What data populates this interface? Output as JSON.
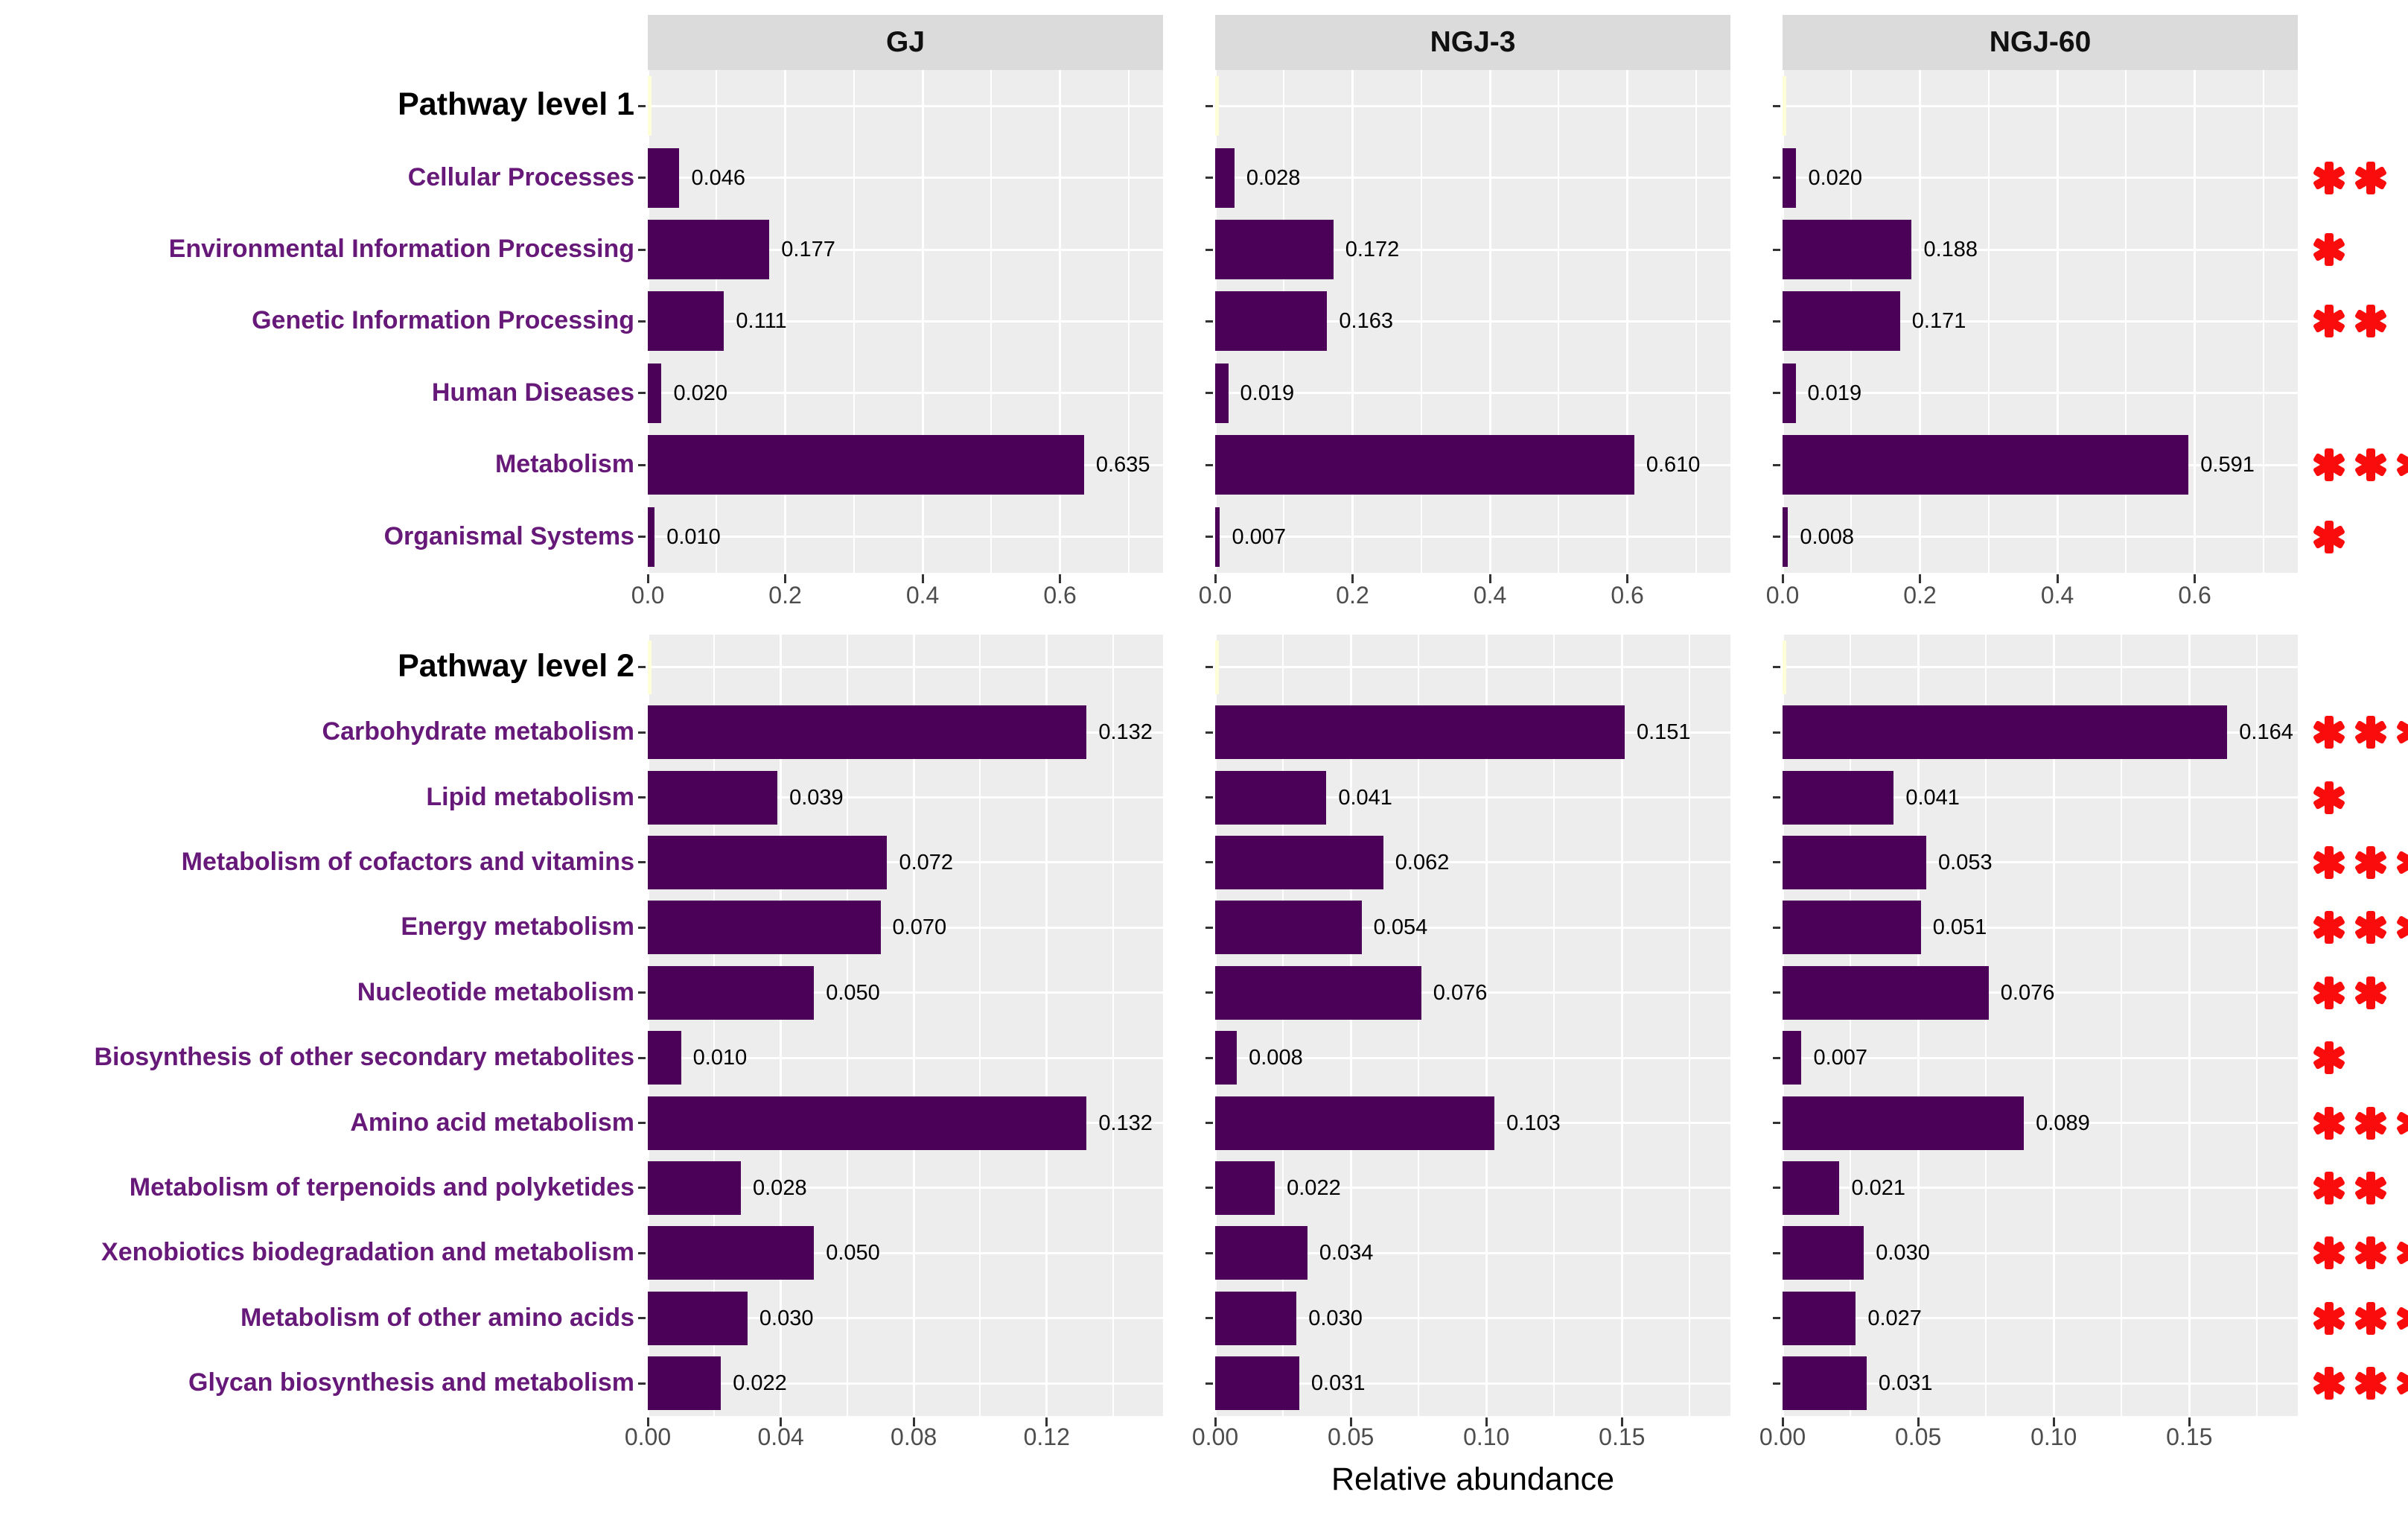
{
  "figure": {
    "xlabel": "Relative abundance",
    "columns": [
      "GJ",
      "NGJ-3",
      "NGJ-60"
    ],
    "colors": {
      "bar": "#4B0158",
      "dummy_bar": "#FEFED8",
      "row_label": "#671979",
      "significance": "#FB0C0C",
      "panel_background": "#EDEDED",
      "strip_background": "#DBDBDB",
      "tick_text": "#4D4D4D"
    }
  },
  "chart_data": [
    {
      "type": "bar",
      "orientation": "horizontal",
      "facet": "Pathway level 1",
      "columns": [
        "GJ",
        "NGJ-3",
        "NGJ-60"
      ],
      "legend": "none",
      "grid": "on",
      "axes": [
        {
          "xmax": 0.75,
          "major": [
            0,
            0.2,
            0.4,
            0.6
          ],
          "labels": [
            "0.0",
            "0.2",
            "0.4",
            "0.6"
          ],
          "minor": [
            0.1,
            0.3,
            0.5,
            0.7
          ]
        },
        {
          "xmax": 0.75,
          "major": [
            0,
            0.2,
            0.4,
            0.6
          ],
          "labels": [
            "0.0",
            "0.2",
            "0.4",
            "0.6"
          ],
          "minor": [
            0.1,
            0.3,
            0.5,
            0.7
          ]
        },
        {
          "xmax": 0.75,
          "major": [
            0,
            0.2,
            0.4,
            0.6
          ],
          "labels": [
            "0.0",
            "0.2",
            "0.4",
            "0.6"
          ],
          "minor": [
            0.1,
            0.3,
            0.5,
            0.7
          ]
        }
      ],
      "rows": [
        {
          "label": "Cellular Processes",
          "values": [
            0.046,
            0.028,
            0.02
          ],
          "display": [
            "0.046",
            "0.028",
            "0.020"
          ],
          "significance": "**"
        },
        {
          "label": "Environmental Information Processing",
          "values": [
            0.177,
            0.172,
            0.188
          ],
          "display": [
            "0.177",
            "0.172",
            "0.188"
          ],
          "significance": "*"
        },
        {
          "label": "Genetic Information Processing",
          "values": [
            0.111,
            0.163,
            0.171
          ],
          "display": [
            "0.111",
            "0.163",
            "0.171"
          ],
          "significance": "**"
        },
        {
          "label": "Human Diseases",
          "values": [
            0.02,
            0.019,
            0.019
          ],
          "display": [
            "0.020",
            "0.019",
            "0.019"
          ],
          "significance": ""
        },
        {
          "label": "Metabolism",
          "values": [
            0.635,
            0.61,
            0.591
          ],
          "display": [
            "0.635",
            "0.610",
            "0.591"
          ],
          "significance": "***"
        },
        {
          "label": "Organismal Systems",
          "values": [
            0.01,
            0.007,
            0.008
          ],
          "display": [
            "0.010",
            "0.007",
            "0.008"
          ],
          "significance": "*"
        }
      ]
    },
    {
      "type": "bar",
      "orientation": "horizontal",
      "facet": "Pathway level 2",
      "columns": [
        "GJ",
        "NGJ-3",
        "NGJ-60"
      ],
      "legend": "none",
      "grid": "on",
      "axes": [
        {
          "xmax": 0.155,
          "major": [
            0,
            0.04,
            0.08,
            0.12
          ],
          "labels": [
            "0.00",
            "0.04",
            "0.08",
            "0.12"
          ],
          "minor": [
            0.02,
            0.06,
            0.1,
            0.14
          ]
        },
        {
          "xmax": 0.19,
          "major": [
            0,
            0.05,
            0.1,
            0.15
          ],
          "labels": [
            "0.00",
            "0.05",
            "0.10",
            "0.15"
          ],
          "minor": [
            0.025,
            0.075,
            0.125,
            0.175
          ]
        },
        {
          "xmax": 0.19,
          "major": [
            0,
            0.05,
            0.1,
            0.15
          ],
          "labels": [
            "0.00",
            "0.05",
            "0.10",
            "0.15"
          ],
          "minor": [
            0.025,
            0.075,
            0.125,
            0.175
          ]
        }
      ],
      "rows": [
        {
          "label": "Carbohydrate metabolism",
          "values": [
            0.132,
            0.151,
            0.164
          ],
          "display": [
            "0.132",
            "0.151",
            "0.164"
          ],
          "significance": "***"
        },
        {
          "label": "Lipid metabolism",
          "values": [
            0.039,
            0.041,
            0.041
          ],
          "display": [
            "0.039",
            "0.041",
            "0.041"
          ],
          "significance": "*"
        },
        {
          "label": "Metabolism of cofactors and vitamins",
          "values": [
            0.072,
            0.062,
            0.053
          ],
          "display": [
            "0.072",
            "0.062",
            "0.053"
          ],
          "significance": "***"
        },
        {
          "label": "Energy metabolism",
          "values": [
            0.07,
            0.054,
            0.051
          ],
          "display": [
            "0.070",
            "0.054",
            "0.051"
          ],
          "significance": "***"
        },
        {
          "label": "Nucleotide metabolism",
          "values": [
            0.05,
            0.076,
            0.076
          ],
          "display": [
            "0.050",
            "0.076",
            "0.076"
          ],
          "significance": "**"
        },
        {
          "label": "Biosynthesis of other secondary metabolites",
          "values": [
            0.01,
            0.008,
            0.007
          ],
          "display": [
            "0.010",
            "0.008",
            "0.007"
          ],
          "significance": "*"
        },
        {
          "label": "Amino acid metabolism",
          "values": [
            0.132,
            0.103,
            0.089
          ],
          "display": [
            "0.132",
            "0.103",
            "0.089"
          ],
          "significance": "***"
        },
        {
          "label": "Metabolism of terpenoids and polyketides",
          "values": [
            0.028,
            0.022,
            0.021
          ],
          "display": [
            "0.028",
            "0.022",
            "0.021"
          ],
          "significance": "**"
        },
        {
          "label": "Xenobiotics biodegradation and metabolism",
          "values": [
            0.05,
            0.034,
            0.03
          ],
          "display": [
            "0.050",
            "0.034",
            "0.030"
          ],
          "significance": "***"
        },
        {
          "label": "Metabolism of other amino acids",
          "values": [
            0.03,
            0.03,
            0.027
          ],
          "display": [
            "0.030",
            "0.030",
            "0.027"
          ],
          "significance": "***"
        },
        {
          "label": "Glycan biosynthesis and metabolism",
          "values": [
            0.022,
            0.031,
            0.031
          ],
          "display": [
            "0.022",
            "0.031",
            "0.031"
          ],
          "significance": "***"
        }
      ]
    }
  ]
}
